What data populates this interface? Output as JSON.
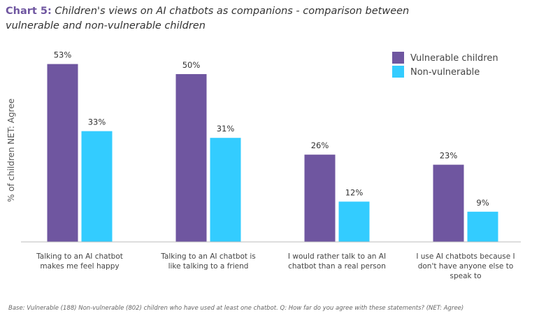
{
  "chart_data": {
    "type": "bar",
    "title_label": "Chart 5:",
    "title": "Children's views on AI chatbots as companions - comparison between vulnerable and non-vulnerable children",
    "y_label": "% of children NET: Agree",
    "categories": [
      "Talking to an AI chatbot makes me feel happy",
      "Talking to an AI chatbot is like talking to a friend",
      "I would rather talk to an AI chatbot than a real person",
      "I use AI chatbots because I don't have anyone else to speak to"
    ],
    "series": [
      {
        "name": "Vulnerable children",
        "color": "#6f56a0",
        "values": [
          53,
          50,
          26,
          23
        ],
        "value_labels": [
          "53%",
          "50%",
          "26%",
          "23%"
        ]
      },
      {
        "name": "Non-vulnerable",
        "color": "#33ccff",
        "values": [
          33,
          31,
          12,
          9
        ],
        "value_labels": [
          "33%",
          "31%",
          "12%",
          "9%"
        ]
      }
    ],
    "ylim": [
      0,
      55
    ],
    "legend": "top-right",
    "footnote": "Base: Vulnerable (188) Non-vulnerable (802) children who have used at least one chatbot. Q: How far do you agree with these statements? (NET: Agree)"
  }
}
